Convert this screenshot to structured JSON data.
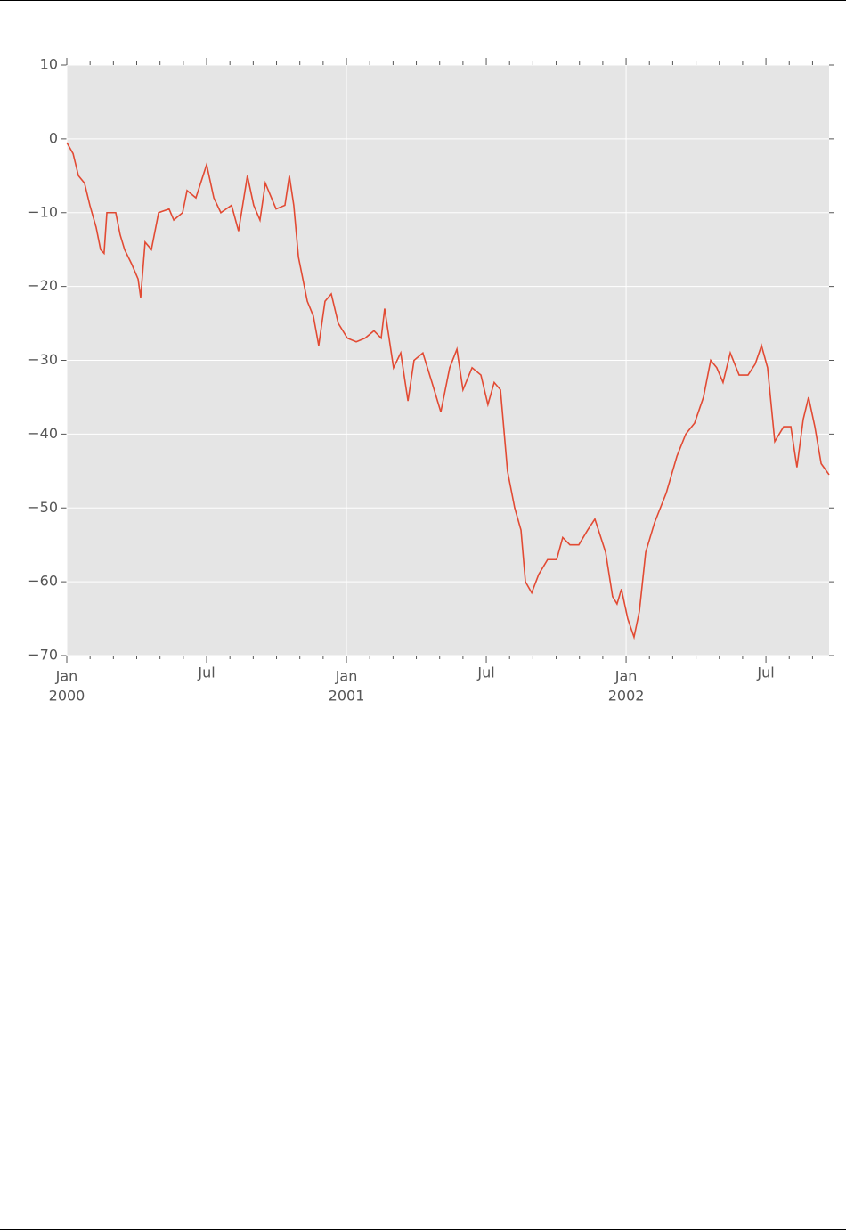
{
  "chart_data": {
    "type": "line",
    "x": [
      0,
      0.27,
      0.5,
      0.76,
      0.99,
      1.26,
      1.45,
      1.6,
      1.72,
      2.1,
      2.29,
      2.48,
      2.79,
      3.06,
      3.17,
      3.36,
      3.63,
      3.94,
      4.39,
      4.59,
      4.97,
      5.16,
      5.54,
      6.0,
      6.31,
      6.61,
      7.07,
      7.37,
      7.75,
      8.02,
      8.29,
      8.52,
      8.98,
      9.36,
      9.55,
      9.74,
      9.94,
      10.32,
      10.58,
      10.81,
      11.08,
      11.35,
      11.65,
      12.04,
      12.42,
      12.8,
      13.18,
      13.49,
      13.64,
      14.02,
      14.33,
      14.64,
      14.9,
      15.28,
      15.67,
      16.05,
      16.43,
      16.74,
      17.0,
      17.39,
      17.77,
      18.07,
      18.34,
      18.61,
      18.91,
      19.22,
      19.49,
      19.68,
      19.95,
      20.25,
      20.63,
      21.02,
      21.28,
      21.59,
      21.97,
      22.35,
      22.66,
      23.12,
      23.42,
      23.61,
      23.8,
      24.07,
      24.34,
      24.57,
      24.84,
      25.22,
      25.72,
      26.18,
      26.56,
      26.94,
      27.32,
      27.63,
      27.89,
      28.16,
      28.47,
      28.85,
      29.23,
      29.54,
      29.81,
      30.07,
      30.38,
      30.76,
      31.07,
      31.33,
      31.6,
      31.83,
      32.1,
      32.37,
      32.71
    ],
    "series": [
      {
        "color": "#e24a33",
        "values": [
          -0.5,
          -2,
          -5,
          -6,
          -9,
          -12,
          -15,
          -15.5,
          -10,
          -10,
          -13,
          -15,
          -17,
          -19,
          -21.5,
          -14,
          -15,
          -10,
          -9.5,
          -11,
          -10,
          -7,
          -8,
          -3.5,
          -8,
          -10,
          -9,
          -12.5,
          -5,
          -9,
          -11,
          -6,
          -9.5,
          -9,
          -5,
          -9,
          -16,
          -22,
          -24,
          -28,
          -22,
          -21,
          -25,
          -27,
          -27.5,
          -27,
          -26,
          -27,
          -23,
          -31,
          -29,
          -35.5,
          -30,
          -29,
          -33,
          -37,
          -31,
          -28.5,
          -34,
          -31,
          -32,
          -36,
          -33,
          -34,
          -45,
          -50,
          -53,
          -60,
          -61.5,
          -59,
          -57,
          -57,
          -54,
          -55,
          -55,
          -53,
          -51.5,
          -56,
          -62,
          -63,
          -61,
          -65,
          -67.5,
          -64,
          -56,
          -52,
          -48,
          -43,
          -40,
          -38.5,
          -35,
          -30,
          -31,
          -33,
          -29,
          -32,
          -32,
          -30.5,
          -28,
          -31,
          -41,
          -39,
          -39,
          -44.5,
          -38,
          -35,
          -39,
          -44,
          -45.5
        ]
      }
    ],
    "xlim": [
      0,
      32.71
    ],
    "xticks": [
      {
        "value": 0,
        "label": "Jan",
        "year": "2000"
      },
      {
        "value": 6,
        "label": "Jul"
      },
      {
        "value": 12,
        "label": "Jan",
        "year": "2001"
      },
      {
        "value": 18,
        "label": "Jul"
      },
      {
        "value": 24,
        "label": "Jan",
        "year": "2002"
      },
      {
        "value": 30,
        "label": "Jul"
      }
    ],
    "xminorticks": [
      1,
      2,
      3,
      4,
      5,
      7,
      8,
      9,
      10,
      11,
      13,
      14,
      15,
      16,
      17,
      19,
      20,
      21,
      22,
      23,
      25,
      26,
      27,
      28,
      29,
      31,
      32
    ],
    "ylim": [
      -70,
      10
    ],
    "yticks": [
      {
        "value": 10,
        "label": "10"
      },
      {
        "value": 0,
        "label": "0"
      },
      {
        "value": -10,
        "label": "−10"
      },
      {
        "value": -20,
        "label": "−20"
      },
      {
        "value": -30,
        "label": "−30"
      },
      {
        "value": -40,
        "label": "−40"
      },
      {
        "value": -50,
        "label": "−50"
      },
      {
        "value": -60,
        "label": "−60"
      },
      {
        "value": -70,
        "label": "−70"
      }
    ],
    "grid": true
  }
}
